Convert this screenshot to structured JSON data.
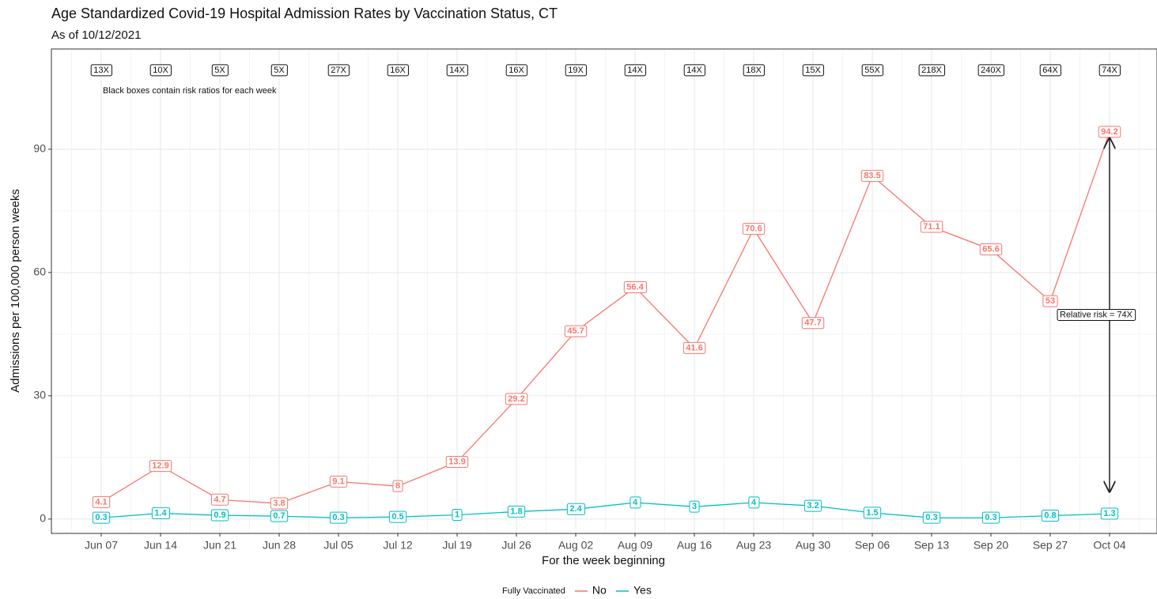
{
  "chart_data": {
    "type": "line",
    "title": "Age Standardized Covid-19 Hospital Admission Rates by Vaccination Status, CT",
    "subtitle": "As of 10/12/2021",
    "x_label": "For the week beginning",
    "y_label": "Admissions per 100,000 person weeks",
    "categories": [
      "Jun 07",
      "Jun 14",
      "Jun 21",
      "Jun 28",
      "Jul 05",
      "Jul 12",
      "Jul 19",
      "Jul 26",
      "Aug 02",
      "Aug 09",
      "Aug 16",
      "Aug 23",
      "Aug 30",
      "Sep 06",
      "Sep 13",
      "Sep 20",
      "Sep 27",
      "Oct 04"
    ],
    "series": [
      {
        "name": "No",
        "color": "#F8766D",
        "values": [
          4.1,
          12.9,
          4.7,
          3.8,
          9.1,
          8,
          13.9,
          29.2,
          45.7,
          56.4,
          41.6,
          70.6,
          47.7,
          83.5,
          71.1,
          65.6,
          53,
          94.2
        ]
      },
      {
        "name": "Yes",
        "color": "#00BFC4",
        "values": [
          0.3,
          1.4,
          0.9,
          0.7,
          0.3,
          0.5,
          1,
          1.8,
          2.4,
          4,
          3,
          4,
          3.2,
          1.5,
          0.3,
          0.3,
          0.8,
          1.3
        ]
      }
    ],
    "risk_ratios": [
      "13X",
      "10X",
      "5X",
      "5X",
      "27X",
      "16X",
      "14X",
      "16X",
      "19X",
      "14X",
      "14X",
      "18X",
      "15X",
      "55X",
      "218X",
      "240X",
      "64X",
      "74X"
    ],
    "risk_note": "Black boxes contain risk ratios for each week",
    "arrow_label": "Relative risk = 74X",
    "legend_title": "Fully Vaccinated",
    "legend_position": "bottom",
    "ylim": [
      -3.5,
      114.4
    ],
    "yticks": [
      0,
      30,
      60,
      90
    ],
    "grid": true
  }
}
